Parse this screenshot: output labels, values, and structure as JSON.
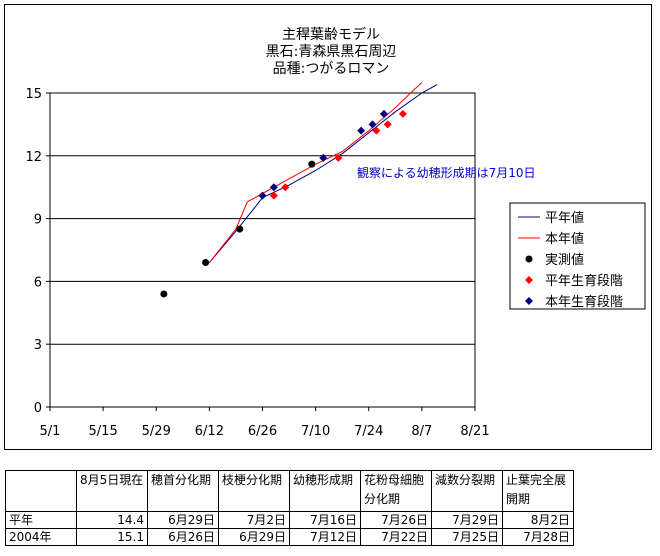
{
  "chart_data": {
    "type": "line",
    "title": [
      "主稈葉齢モデル",
      "黒石:青森県黒石周辺",
      "品種:つがるロマン"
    ],
    "x_ticks": [
      "5/1",
      "5/15",
      "5/29",
      "6/12",
      "6/26",
      "7/10",
      "7/24",
      "8/7",
      "8/21"
    ],
    "y_ticks": [
      "0",
      "3",
      "6",
      "9",
      "12",
      "15"
    ],
    "xlim": [
      "5/1",
      "8/21"
    ],
    "ylim": [
      0,
      15
    ],
    "grid": "horizontal",
    "legend_position": "right",
    "annotation": "観察による幼穂形成期は7月10日",
    "series": [
      {
        "name": "平年値",
        "kind": "line",
        "color": "#000080",
        "points": [
          [
            "6/12",
            6.9
          ],
          [
            "6/19",
            8.4
          ],
          [
            "6/26",
            10.0
          ],
          [
            "7/3",
            10.6
          ],
          [
            "7/10",
            11.3
          ],
          [
            "7/17",
            12.1
          ],
          [
            "7/24",
            13.1
          ],
          [
            "7/31",
            14.1
          ],
          [
            "8/7",
            15.0
          ],
          [
            "8/11",
            15.4
          ]
        ]
      },
      {
        "name": "本年値",
        "kind": "line",
        "color": "#ff0000",
        "points": [
          [
            "6/12",
            6.9
          ],
          [
            "6/19",
            8.5
          ],
          [
            "6/22",
            9.8
          ],
          [
            "6/26",
            10.2
          ],
          [
            "7/3",
            10.9
          ],
          [
            "7/10",
            11.6
          ],
          [
            "7/17",
            12.2
          ],
          [
            "7/24",
            13.2
          ],
          [
            "7/31",
            14.3
          ],
          [
            "8/4",
            15.0
          ],
          [
            "8/7",
            15.5
          ]
        ]
      },
      {
        "name": "実測値",
        "kind": "marker",
        "marker": "circle",
        "color": "#000000",
        "points": [
          [
            "5/31",
            5.4
          ],
          [
            "6/11",
            6.9
          ],
          [
            "6/20",
            8.5
          ],
          [
            "7/9",
            11.6
          ]
        ]
      },
      {
        "name": "平年生育段階",
        "kind": "marker",
        "marker": "diamond",
        "color": "#ff0000",
        "points": [
          [
            "6/29",
            10.1
          ],
          [
            "7/2",
            10.5
          ],
          [
            "7/16",
            11.9
          ],
          [
            "7/26",
            13.2
          ],
          [
            "7/29",
            13.5
          ],
          [
            "8/2",
            14.0
          ]
        ]
      },
      {
        "name": "本年生育段階",
        "kind": "marker",
        "marker": "diamond",
        "color": "#000080",
        "points": [
          [
            "6/26",
            10.1
          ],
          [
            "6/29",
            10.5
          ],
          [
            "7/12",
            11.9
          ],
          [
            "7/22",
            13.2
          ],
          [
            "7/25",
            13.5
          ],
          [
            "7/28",
            14.0
          ]
        ]
      }
    ]
  },
  "table": {
    "headers": [
      "",
      "8月5日現在",
      "穂首分化期",
      "枝梗分化期",
      "幼穂形成期",
      "花粉母細胞分化期",
      "減数分裂期",
      "止葉完全展開期"
    ],
    "rows": [
      [
        "平年",
        "14.4",
        "6月29日",
        "7月2日",
        "7月16日",
        "7月26日",
        "7月29日",
        "8月2日"
      ],
      [
        "2004年",
        "15.1",
        "6月26日",
        "6月29日",
        "7月12日",
        "7月22日",
        "7月25日",
        "7月28日"
      ]
    ]
  }
}
